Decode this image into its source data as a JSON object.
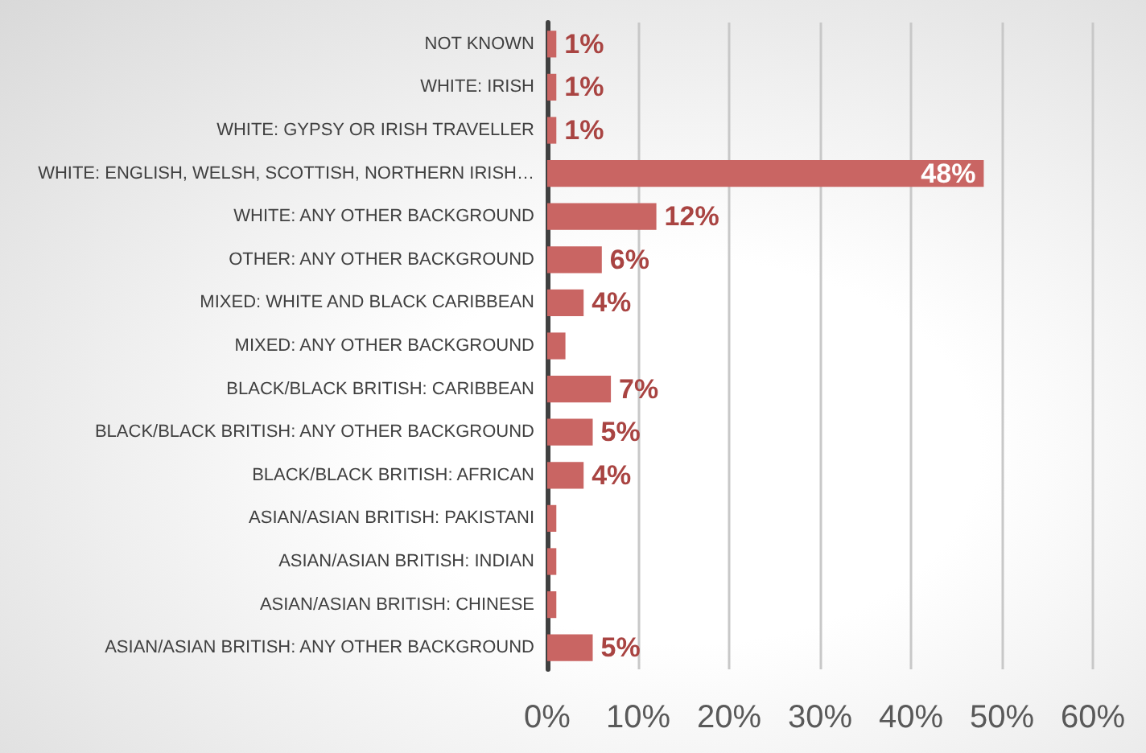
{
  "chart_data": {
    "type": "bar",
    "orientation": "horizontal",
    "categories": [
      "NOT KNOWN",
      "WHITE: IRISH",
      "WHITE: GYPSY OR IRISH TRAVELLER",
      "WHITE: ENGLISH, WELSH, SCOTTISH, NORTHERN IRISH…",
      "WHITE: ANY OTHER BACKGROUND",
      "OTHER: ANY OTHER BACKGROUND",
      "MIXED: WHITE AND BLACK CARIBBEAN",
      "MIXED: ANY OTHER BACKGROUND",
      "BLACK/BLACK BRITISH: CARIBBEAN",
      "BLACK/BLACK BRITISH: ANY OTHER BACKGROUND",
      "BLACK/BLACK BRITISH: AFRICAN",
      "ASIAN/ASIAN BRITISH: PAKISTANI",
      "ASIAN/ASIAN BRITISH: INDIAN",
      "ASIAN/ASIAN BRITISH: CHINESE",
      "ASIAN/ASIAN BRITISH: ANY OTHER BACKGROUND"
    ],
    "values": [
      1,
      1,
      1,
      48,
      12,
      6,
      4,
      2,
      7,
      5,
      4,
      1,
      1,
      1,
      5
    ],
    "value_labels": [
      "1%",
      "1%",
      "1%",
      "48%",
      "12%",
      "6%",
      "4%",
      null,
      "7%",
      "5%",
      "4%",
      null,
      null,
      null,
      "5%"
    ],
    "color": "#c96563",
    "xlim": [
      0,
      60
    ],
    "xticks": [
      {
        "value": 0,
        "label": "0%"
      },
      {
        "value": 10,
        "label": "10%"
      },
      {
        "value": 20,
        "label": "20%"
      },
      {
        "value": 30,
        "label": "30%"
      },
      {
        "value": 40,
        "label": "40%"
      },
      {
        "value": 50,
        "label": "50%"
      },
      {
        "value": 60,
        "label": "60%"
      }
    ],
    "grid": "x"
  }
}
